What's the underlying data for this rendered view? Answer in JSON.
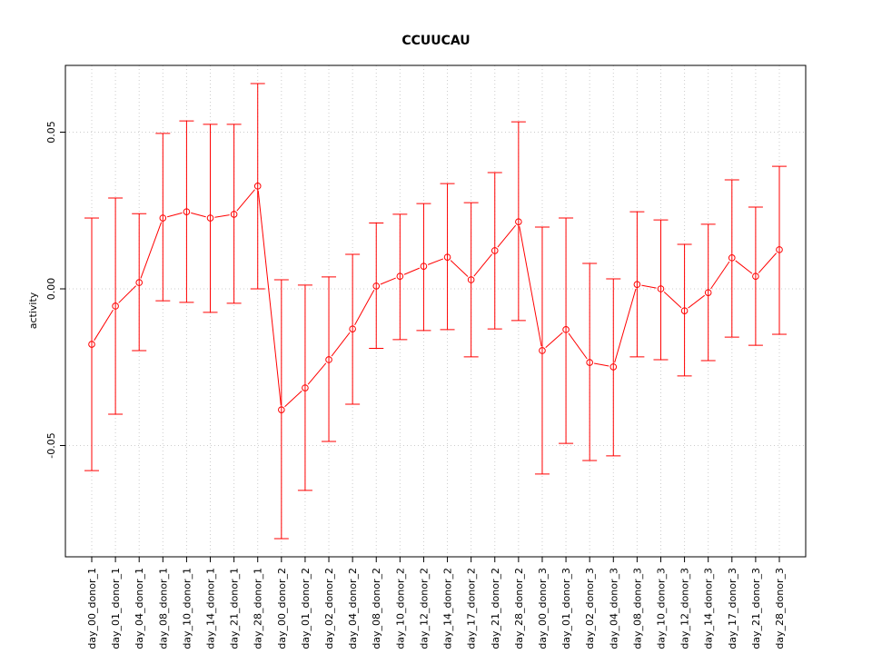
{
  "chart_data": {
    "type": "line",
    "title": "CCUUCAU",
    "xlabel": "",
    "ylabel": "activity",
    "ylim": [
      -0.085,
      0.072
    ],
    "yticks": [
      -0.05,
      0.0,
      0.05
    ],
    "ytick_labels": [
      "-0.05",
      "0.00",
      "0.05"
    ],
    "grid": true,
    "color": "#ff0000",
    "categories": [
      "day_00_donor_1",
      "day_01_donor_1",
      "day_04_donor_1",
      "day_08_donor_1",
      "day_10_donor_1",
      "day_14_donor_1",
      "day_21_donor_1",
      "day_28_donor_1",
      "day_00_donor_2",
      "day_01_donor_2",
      "day_02_donor_2",
      "day_04_donor_2",
      "day_08_donor_2",
      "day_10_donor_2",
      "day_12_donor_2",
      "day_14_donor_2",
      "day_17_donor_2",
      "day_21_donor_2",
      "day_28_donor_2",
      "day_00_donor_3",
      "day_01_donor_3",
      "day_02_donor_3",
      "day_04_donor_3",
      "day_08_donor_3",
      "day_10_donor_3",
      "day_12_donor_3",
      "day_14_donor_3",
      "day_17_donor_3",
      "day_21_donor_3",
      "day_28_donor_3"
    ],
    "values": [
      -0.0177,
      -0.0055,
      0.002,
      0.0226,
      0.0246,
      0.0226,
      0.0238,
      0.0328,
      -0.0386,
      -0.0316,
      -0.0226,
      -0.0128,
      0.0009,
      0.004,
      0.0072,
      0.0101,
      0.0029,
      0.0122,
      0.0214,
      -0.0197,
      -0.013,
      -0.0235,
      -0.0249,
      0.0014,
      0.0,
      -0.007,
      -0.0012,
      0.0099,
      0.004,
      0.0125
    ],
    "upper": [
      0.0226,
      0.029,
      0.024,
      0.0496,
      0.0536,
      0.0525,
      0.0525,
      0.0655,
      0.0029,
      0.0012,
      0.0038,
      0.011,
      0.021,
      0.0238,
      0.0272,
      0.0336,
      0.0275,
      0.0371,
      0.0533,
      0.0197,
      0.0226,
      0.0081,
      0.0032,
      0.0246,
      0.022,
      0.0142,
      0.0206,
      0.0348,
      0.0261,
      0.0391
    ],
    "lower": [
      -0.058,
      -0.04,
      -0.0197,
      -0.0038,
      -0.0043,
      -0.0075,
      -0.0046,
      0.0,
      -0.0797,
      -0.0643,
      -0.0487,
      -0.0368,
      -0.019,
      -0.0162,
      -0.0133,
      -0.013,
      -0.0217,
      -0.0128,
      -0.0101,
      -0.0591,
      -0.0493,
      -0.0548,
      -0.0533,
      -0.0217,
      -0.0226,
      -0.0278,
      -0.0229,
      -0.0154,
      -0.018,
      -0.0145
    ]
  }
}
